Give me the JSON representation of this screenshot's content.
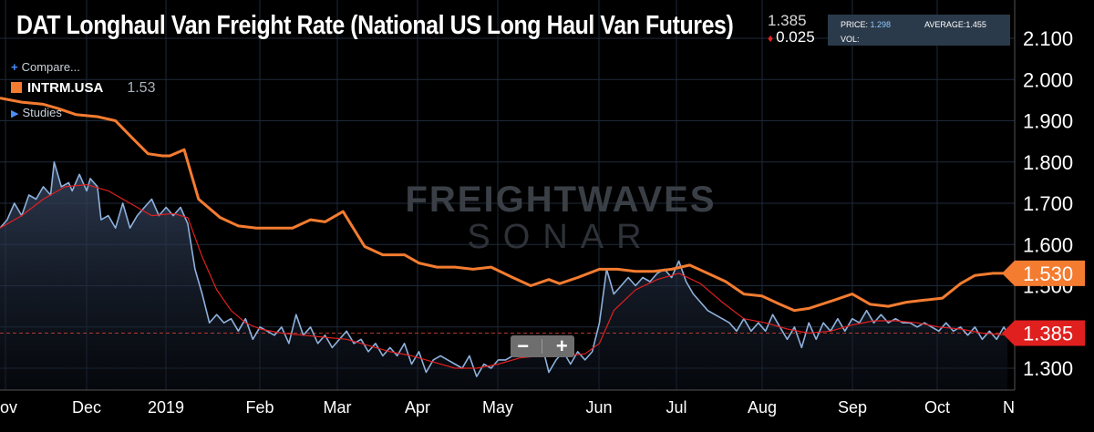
{
  "title": "DAT Longhaul Van Freight Rate (National US Long Haul Van Futures)",
  "price_box": {
    "last": "1.385",
    "change": "0.025"
  },
  "info_box": {
    "price_label": "PRICE:",
    "price_value": "1.298",
    "average_label": "AVERAGE:",
    "average_value": "1.455",
    "vol_label": "VOL:"
  },
  "legend": {
    "compare": "Compare...",
    "series_name": "INTRM.USA",
    "series_last": "1.53",
    "studies": "Studies"
  },
  "watermark": {
    "top": "FREIGHTWAVES",
    "bottom": "SONAR"
  },
  "zoom": {
    "minus": "−",
    "plus": "+"
  },
  "colors": {
    "background": "#000000",
    "orange": "#f47c30",
    "blue": "#8eb1dc",
    "red_ma": "#e0201f",
    "grid": "#1e2a3a"
  },
  "chart_data": {
    "type": "line",
    "x_ticks": [
      "ov",
      "Dec",
      "2019",
      "Feb",
      "Mar",
      "Apr",
      "May",
      "Jun",
      "Jul",
      "Aug",
      "Sep",
      "Oct",
      "N"
    ],
    "y_ticks": [
      "1.300",
      "1.400",
      "1.500",
      "1.600",
      "1.700",
      "1.800",
      "1.900",
      "2.000",
      "2.100"
    ],
    "ylim": [
      1.245,
      2.16
    ],
    "price_label_orange": "1.530",
    "price_label_blue": "1.385",
    "current_price_line": 1.385,
    "series": [
      {
        "name": "INTRM.USA",
        "color": "orange",
        "points": [
          [
            0,
            1.955
          ],
          [
            6,
            1.945
          ],
          [
            12,
            1.94
          ],
          [
            16,
            1.93
          ],
          [
            21,
            1.915
          ],
          [
            27,
            1.91
          ],
          [
            32,
            1.9
          ],
          [
            37,
            1.855
          ],
          [
            41,
            1.82
          ],
          [
            45,
            1.815
          ],
          [
            47,
            1.815
          ],
          [
            51,
            1.83
          ],
          [
            55,
            1.71
          ],
          [
            61,
            1.665
          ],
          [
            66,
            1.645
          ],
          [
            71,
            1.64
          ],
          [
            76,
            1.64
          ],
          [
            81,
            1.64
          ],
          [
            86,
            1.66
          ],
          [
            90,
            1.655
          ],
          [
            95,
            1.68
          ],
          [
            101,
            1.595
          ],
          [
            106,
            1.575
          ],
          [
            112,
            1.575
          ],
          [
            116,
            1.555
          ],
          [
            121,
            1.545
          ],
          [
            126,
            1.545
          ],
          [
            131,
            1.54
          ],
          [
            136,
            1.545
          ],
          [
            142,
            1.52
          ],
          [
            147,
            1.5
          ],
          [
            152,
            1.515
          ],
          [
            155,
            1.505
          ],
          [
            160,
            1.52
          ],
          [
            166,
            1.54
          ],
          [
            171,
            1.54
          ],
          [
            176,
            1.535
          ],
          [
            181,
            1.535
          ],
          [
            186,
            1.54
          ],
          [
            191,
            1.55
          ],
          [
            196,
            1.53
          ],
          [
            201,
            1.51
          ],
          [
            206,
            1.48
          ],
          [
            211,
            1.475
          ],
          [
            216,
            1.455
          ],
          [
            220,
            1.44
          ],
          [
            224,
            1.445
          ],
          [
            231,
            1.465
          ],
          [
            236,
            1.48
          ],
          [
            241,
            1.455
          ],
          [
            246,
            1.45
          ],
          [
            251,
            1.46
          ],
          [
            256,
            1.465
          ],
          [
            261,
            1.47
          ],
          [
            266,
            1.505
          ],
          [
            270,
            1.525
          ],
          [
            275,
            1.53
          ],
          [
            281,
            1.53
          ]
        ]
      },
      {
        "name": "",
        "color": "blue",
        "points": [
          [
            0,
            1.64
          ],
          [
            2,
            1.66
          ],
          [
            4,
            1.7
          ],
          [
            6,
            1.67
          ],
          [
            8,
            1.72
          ],
          [
            10,
            1.71
          ],
          [
            12,
            1.74
          ],
          [
            14,
            1.72
          ],
          [
            15,
            1.8
          ],
          [
            17,
            1.74
          ],
          [
            19,
            1.75
          ],
          [
            20,
            1.73
          ],
          [
            22,
            1.77
          ],
          [
            24,
            1.73
          ],
          [
            25,
            1.76
          ],
          [
            27,
            1.74
          ],
          [
            28,
            1.66
          ],
          [
            30,
            1.67
          ],
          [
            32,
            1.64
          ],
          [
            34,
            1.7
          ],
          [
            36,
            1.64
          ],
          [
            38,
            1.67
          ],
          [
            40,
            1.69
          ],
          [
            42,
            1.71
          ],
          [
            44,
            1.67
          ],
          [
            46,
            1.69
          ],
          [
            48,
            1.67
          ],
          [
            50,
            1.69
          ],
          [
            52,
            1.65
          ],
          [
            54,
            1.54
          ],
          [
            56,
            1.48
          ],
          [
            58,
            1.41
          ],
          [
            60,
            1.43
          ],
          [
            62,
            1.41
          ],
          [
            64,
            1.42
          ],
          [
            66,
            1.39
          ],
          [
            68,
            1.42
          ],
          [
            70,
            1.37
          ],
          [
            72,
            1.4
          ],
          [
            74,
            1.39
          ],
          [
            76,
            1.38
          ],
          [
            78,
            1.4
          ],
          [
            80,
            1.36
          ],
          [
            82,
            1.43
          ],
          [
            84,
            1.38
          ],
          [
            86,
            1.4
          ],
          [
            88,
            1.36
          ],
          [
            90,
            1.38
          ],
          [
            92,
            1.35
          ],
          [
            94,
            1.37
          ],
          [
            96,
            1.39
          ],
          [
            98,
            1.36
          ],
          [
            100,
            1.37
          ],
          [
            102,
            1.34
          ],
          [
            104,
            1.36
          ],
          [
            106,
            1.33
          ],
          [
            108,
            1.35
          ],
          [
            110,
            1.33
          ],
          [
            112,
            1.36
          ],
          [
            114,
            1.31
          ],
          [
            116,
            1.34
          ],
          [
            118,
            1.29
          ],
          [
            120,
            1.32
          ],
          [
            122,
            1.33
          ],
          [
            124,
            1.32
          ],
          [
            126,
            1.31
          ],
          [
            128,
            1.3
          ],
          [
            130,
            1.33
          ],
          [
            132,
            1.28
          ],
          [
            134,
            1.31
          ],
          [
            136,
            1.3
          ],
          [
            138,
            1.32
          ],
          [
            140,
            1.32
          ],
          [
            142,
            1.33
          ],
          [
            144,
            1.34
          ],
          [
            146,
            1.35
          ],
          [
            148,
            1.33
          ],
          [
            150,
            1.36
          ],
          [
            152,
            1.29
          ],
          [
            154,
            1.32
          ],
          [
            156,
            1.34
          ],
          [
            158,
            1.31
          ],
          [
            160,
            1.34
          ],
          [
            162,
            1.32
          ],
          [
            164,
            1.34
          ],
          [
            166,
            1.41
          ],
          [
            168,
            1.54
          ],
          [
            170,
            1.48
          ],
          [
            172,
            1.5
          ],
          [
            174,
            1.52
          ],
          [
            176,
            1.5
          ],
          [
            178,
            1.52
          ],
          [
            180,
            1.51
          ],
          [
            182,
            1.53
          ],
          [
            184,
            1.54
          ],
          [
            186,
            1.52
          ],
          [
            188,
            1.56
          ],
          [
            190,
            1.51
          ],
          [
            192,
            1.48
          ],
          [
            194,
            1.46
          ],
          [
            196,
            1.44
          ],
          [
            198,
            1.43
          ],
          [
            200,
            1.42
          ],
          [
            202,
            1.41
          ],
          [
            204,
            1.39
          ],
          [
            206,
            1.42
          ],
          [
            208,
            1.39
          ],
          [
            210,
            1.41
          ],
          [
            212,
            1.39
          ],
          [
            214,
            1.43
          ],
          [
            216,
            1.4
          ],
          [
            218,
            1.37
          ],
          [
            220,
            1.4
          ],
          [
            222,
            1.35
          ],
          [
            224,
            1.41
          ],
          [
            226,
            1.37
          ],
          [
            228,
            1.41
          ],
          [
            230,
            1.39
          ],
          [
            232,
            1.42
          ],
          [
            234,
            1.39
          ],
          [
            236,
            1.42
          ],
          [
            238,
            1.41
          ],
          [
            240,
            1.44
          ],
          [
            242,
            1.41
          ],
          [
            244,
            1.43
          ],
          [
            246,
            1.41
          ],
          [
            248,
            1.42
          ],
          [
            250,
            1.41
          ],
          [
            252,
            1.41
          ],
          [
            254,
            1.4
          ],
          [
            256,
            1.41
          ],
          [
            258,
            1.4
          ],
          [
            260,
            1.39
          ],
          [
            262,
            1.41
          ],
          [
            264,
            1.39
          ],
          [
            266,
            1.4
          ],
          [
            268,
            1.38
          ],
          [
            270,
            1.4
          ],
          [
            272,
            1.37
          ],
          [
            274,
            1.39
          ],
          [
            276,
            1.37
          ],
          [
            278,
            1.4
          ],
          [
            279,
            1.385
          ]
        ]
      },
      {
        "name": "",
        "color": "red_ma",
        "points": [
          [
            0,
            1.64
          ],
          [
            6,
            1.67
          ],
          [
            12,
            1.71
          ],
          [
            18,
            1.74
          ],
          [
            24,
            1.745
          ],
          [
            30,
            1.73
          ],
          [
            36,
            1.7
          ],
          [
            42,
            1.67
          ],
          [
            48,
            1.675
          ],
          [
            52,
            1.665
          ],
          [
            56,
            1.57
          ],
          [
            60,
            1.49
          ],
          [
            64,
            1.44
          ],
          [
            68,
            1.41
          ],
          [
            72,
            1.395
          ],
          [
            78,
            1.385
          ],
          [
            84,
            1.38
          ],
          [
            90,
            1.375
          ],
          [
            96,
            1.37
          ],
          [
            102,
            1.355
          ],
          [
            108,
            1.34
          ],
          [
            114,
            1.33
          ],
          [
            120,
            1.315
          ],
          [
            126,
            1.3
          ],
          [
            132,
            1.3
          ],
          [
            138,
            1.31
          ],
          [
            144,
            1.325
          ],
          [
            150,
            1.33
          ],
          [
            156,
            1.33
          ],
          [
            162,
            1.335
          ],
          [
            166,
            1.36
          ],
          [
            170,
            1.44
          ],
          [
            176,
            1.49
          ],
          [
            182,
            1.515
          ],
          [
            188,
            1.53
          ],
          [
            194,
            1.505
          ],
          [
            200,
            1.46
          ],
          [
            206,
            1.42
          ],
          [
            212,
            1.41
          ],
          [
            218,
            1.395
          ],
          [
            224,
            1.385
          ],
          [
            230,
            1.39
          ],
          [
            236,
            1.405
          ],
          [
            242,
            1.415
          ],
          [
            248,
            1.415
          ],
          [
            254,
            1.41
          ],
          [
            260,
            1.4
          ],
          [
            266,
            1.395
          ],
          [
            272,
            1.385
          ],
          [
            279,
            1.38
          ]
        ]
      }
    ]
  }
}
